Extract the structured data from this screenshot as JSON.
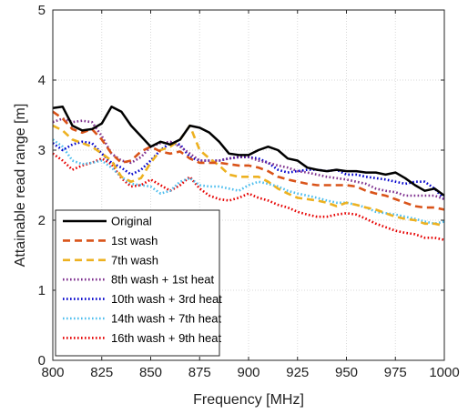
{
  "chart_data": {
    "type": "line",
    "title": "",
    "xlabel": "Frequency [MHz]",
    "ylabel": "Attainable read range [m]",
    "xlim": [
      800,
      1000
    ],
    "ylim": [
      0,
      5
    ],
    "xticks": [
      800,
      825,
      850,
      875,
      900,
      925,
      950,
      975,
      1000
    ],
    "yticks": [
      0,
      1,
      2,
      3,
      4,
      5
    ],
    "grid": true,
    "legend_position": "lower-left",
    "series": [
      {
        "name": "Original",
        "color": "#000000",
        "dash": "solid",
        "x": [
          800,
          805,
          810,
          815,
          820,
          825,
          830,
          835,
          840,
          845,
          850,
          855,
          860,
          865,
          870,
          875,
          880,
          885,
          890,
          895,
          900,
          905,
          910,
          915,
          920,
          925,
          930,
          935,
          940,
          945,
          950,
          955,
          960,
          965,
          970,
          975,
          980,
          985,
          990,
          995,
          1000
        ],
        "y": [
          3.6,
          3.62,
          3.35,
          3.28,
          3.3,
          3.38,
          3.62,
          3.55,
          3.35,
          3.2,
          3.05,
          3.12,
          3.08,
          3.15,
          3.35,
          3.32,
          3.25,
          3.12,
          2.95,
          2.93,
          2.93,
          3.0,
          3.05,
          3.0,
          2.88,
          2.85,
          2.75,
          2.72,
          2.7,
          2.72,
          2.7,
          2.7,
          2.68,
          2.68,
          2.65,
          2.68,
          2.6,
          2.5,
          2.42,
          2.45,
          2.35
        ]
      },
      {
        "name": "1st wash",
        "color": "#d95319",
        "dash": "dashed",
        "x": [
          800,
          805,
          810,
          815,
          820,
          825,
          830,
          835,
          840,
          845,
          850,
          855,
          860,
          865,
          870,
          875,
          880,
          885,
          890,
          895,
          900,
          905,
          910,
          915,
          920,
          925,
          930,
          935,
          940,
          945,
          950,
          955,
          960,
          965,
          970,
          975,
          980,
          985,
          990,
          995,
          1000
        ],
        "y": [
          3.55,
          3.45,
          3.3,
          3.25,
          3.3,
          3.15,
          2.95,
          2.82,
          2.85,
          2.98,
          3.05,
          2.98,
          2.95,
          2.98,
          2.88,
          2.82,
          2.82,
          2.82,
          2.8,
          2.78,
          2.78,
          2.75,
          2.7,
          2.62,
          2.58,
          2.55,
          2.52,
          2.5,
          2.5,
          2.5,
          2.5,
          2.48,
          2.42,
          2.38,
          2.35,
          2.3,
          2.25,
          2.2,
          2.18,
          2.18,
          2.15
        ]
      },
      {
        "name": "7th wash",
        "color": "#edb120",
        "dash": "dashed",
        "x": [
          800,
          805,
          810,
          815,
          820,
          825,
          830,
          835,
          840,
          845,
          850,
          855,
          860,
          865,
          870,
          875,
          880,
          885,
          890,
          895,
          900,
          905,
          910,
          915,
          920,
          925,
          930,
          935,
          940,
          945,
          950,
          955,
          960,
          965,
          970,
          975,
          980,
          985,
          990,
          995,
          1000
        ],
        "y": [
          3.35,
          3.28,
          3.15,
          3.1,
          3.05,
          2.95,
          2.85,
          2.62,
          2.55,
          2.6,
          2.82,
          3.0,
          3.05,
          3.15,
          3.35,
          3.0,
          2.88,
          2.78,
          2.65,
          2.62,
          2.62,
          2.62,
          2.55,
          2.45,
          2.38,
          2.32,
          2.3,
          2.28,
          2.25,
          2.2,
          2.25,
          2.22,
          2.18,
          2.15,
          2.1,
          2.05,
          2.02,
          2.0,
          1.95,
          1.95,
          1.92
        ]
      },
      {
        "name": "8th wash + 1st heat",
        "color": "#7e2f8e",
        "dash": "dotted",
        "x": [
          800,
          805,
          810,
          815,
          820,
          825,
          830,
          835,
          840,
          845,
          850,
          855,
          860,
          865,
          870,
          875,
          880,
          885,
          890,
          895,
          900,
          905,
          910,
          915,
          920,
          925,
          930,
          935,
          940,
          945,
          950,
          955,
          960,
          965,
          970,
          975,
          980,
          985,
          990,
          995,
          1000
        ],
        "y": [
          3.4,
          3.45,
          3.4,
          3.42,
          3.4,
          3.2,
          2.95,
          2.85,
          2.82,
          2.9,
          3.05,
          3.1,
          3.12,
          3.05,
          2.95,
          2.85,
          2.85,
          2.85,
          2.88,
          2.9,
          2.9,
          2.85,
          2.82,
          2.78,
          2.75,
          2.7,
          2.68,
          2.65,
          2.62,
          2.6,
          2.58,
          2.55,
          2.52,
          2.45,
          2.42,
          2.4,
          2.35,
          2.35,
          2.35,
          2.35,
          2.3
        ]
      },
      {
        "name": "10th wash + 3rd heat",
        "color": "#0000cc",
        "dash": "dotted",
        "x": [
          800,
          805,
          810,
          815,
          820,
          825,
          830,
          835,
          840,
          845,
          850,
          855,
          860,
          865,
          870,
          875,
          880,
          885,
          890,
          895,
          900,
          905,
          910,
          915,
          920,
          925,
          930,
          935,
          940,
          945,
          950,
          955,
          960,
          965,
          970,
          975,
          980,
          985,
          990,
          995,
          1000
        ],
        "y": [
          3.1,
          3.0,
          3.08,
          3.12,
          3.1,
          2.95,
          2.82,
          2.75,
          2.65,
          2.72,
          2.85,
          3.0,
          3.1,
          3.08,
          2.9,
          2.85,
          2.85,
          2.85,
          2.88,
          2.9,
          2.9,
          2.88,
          2.82,
          2.72,
          2.68,
          2.7,
          2.72,
          2.72,
          2.7,
          2.72,
          2.65,
          2.65,
          2.62,
          2.6,
          2.58,
          2.55,
          2.52,
          2.55,
          2.55,
          2.45,
          2.3
        ]
      },
      {
        "name": "14th wash + 7th heat",
        "color": "#4dbeee",
        "dash": "dotted",
        "x": [
          800,
          805,
          810,
          815,
          820,
          825,
          830,
          835,
          840,
          845,
          850,
          855,
          860,
          865,
          870,
          875,
          880,
          885,
          890,
          895,
          900,
          905,
          910,
          915,
          920,
          925,
          930,
          935,
          940,
          945,
          950,
          955,
          960,
          965,
          970,
          975,
          980,
          985,
          990,
          995,
          1000
        ],
        "y": [
          3.15,
          3.05,
          2.85,
          2.8,
          2.82,
          2.85,
          2.75,
          2.62,
          2.52,
          2.5,
          2.48,
          2.38,
          2.42,
          2.55,
          2.6,
          2.5,
          2.48,
          2.48,
          2.45,
          2.42,
          2.5,
          2.55,
          2.52,
          2.48,
          2.42,
          2.38,
          2.35,
          2.32,
          2.28,
          2.25,
          2.25,
          2.22,
          2.18,
          2.12,
          2.1,
          2.08,
          2.05,
          2.02,
          1.98,
          1.95,
          1.98
        ]
      },
      {
        "name": "16th wash + 9th heat",
        "color": "#e60000",
        "dash": "dotted",
        "x": [
          800,
          805,
          810,
          815,
          820,
          825,
          830,
          835,
          840,
          845,
          850,
          855,
          860,
          865,
          870,
          875,
          880,
          885,
          890,
          895,
          900,
          905,
          910,
          915,
          920,
          925,
          930,
          935,
          940,
          945,
          950,
          955,
          960,
          965,
          970,
          975,
          980,
          985,
          990,
          995,
          1000
        ],
        "y": [
          2.95,
          2.85,
          2.72,
          2.78,
          2.82,
          2.88,
          2.8,
          2.6,
          2.48,
          2.5,
          2.58,
          2.5,
          2.42,
          2.5,
          2.62,
          2.45,
          2.35,
          2.3,
          2.28,
          2.32,
          2.38,
          2.32,
          2.28,
          2.22,
          2.18,
          2.12,
          2.08,
          2.05,
          2.05,
          2.08,
          2.1,
          2.08,
          2.02,
          1.95,
          1.9,
          1.85,
          1.82,
          1.8,
          1.75,
          1.75,
          1.72
        ]
      }
    ]
  }
}
